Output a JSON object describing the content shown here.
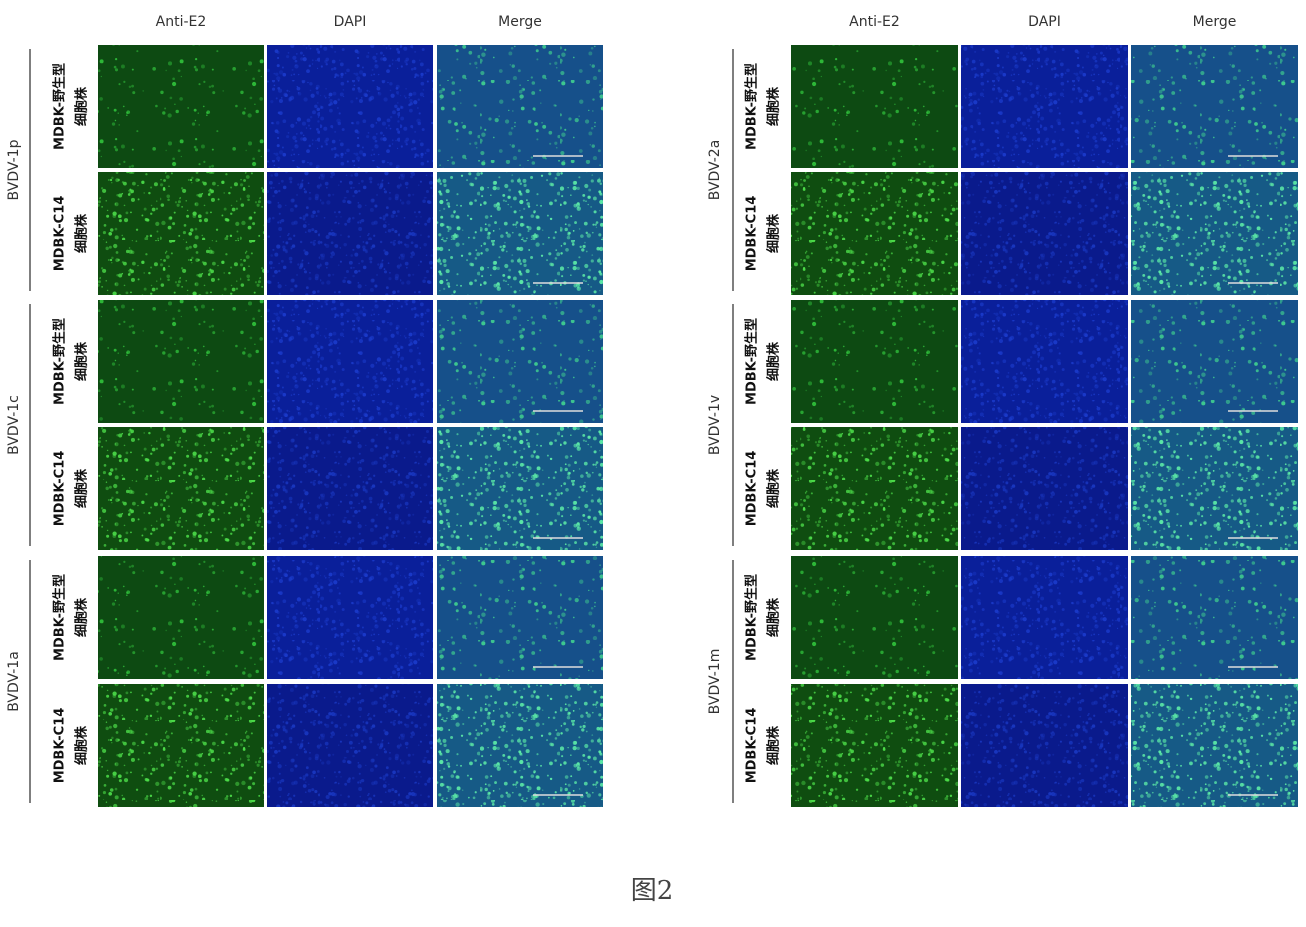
{
  "panels": [
    {
      "columns": [
        "Anti-E2",
        "DAPI",
        "Merge"
      ],
      "groups": [
        {
          "label": "BVDV-1p",
          "rows": [
            [
              "MDBK-野生型",
              "细胞株"
            ],
            [
              "MDBK-C14",
              "细胞株"
            ]
          ]
        },
        {
          "label": "BVDV-1c",
          "rows": [
            [
              "MDBK-野生型",
              "细胞株"
            ],
            [
              "MDBK-C14",
              "细胞株"
            ]
          ]
        },
        {
          "label": "BVDV-1a",
          "rows": [
            [
              "MDBK-野生型",
              "细胞株"
            ],
            [
              "MDBK-C14",
              "细胞株"
            ]
          ]
        }
      ]
    },
    {
      "columns": [
        "Anti-E2",
        "DAPI",
        "Merge"
      ],
      "groups": [
        {
          "label": "BVDV-2a",
          "rows": [
            [
              "MDBK-野生型",
              "细胞株"
            ],
            [
              "MDBK-C14",
              "细胞株"
            ]
          ]
        },
        {
          "label": "BVDV-1v",
          "rows": [
            [
              "MDBK-野生型",
              "细胞株"
            ],
            [
              "MDBK-C14",
              "细胞株"
            ]
          ]
        },
        {
          "label": "BVDV-1m",
          "rows": [
            [
              "MDBK-野生型",
              "细胞株"
            ],
            [
              "MDBK-C14",
              "细胞株"
            ]
          ]
        }
      ]
    }
  ],
  "caption": "图2"
}
